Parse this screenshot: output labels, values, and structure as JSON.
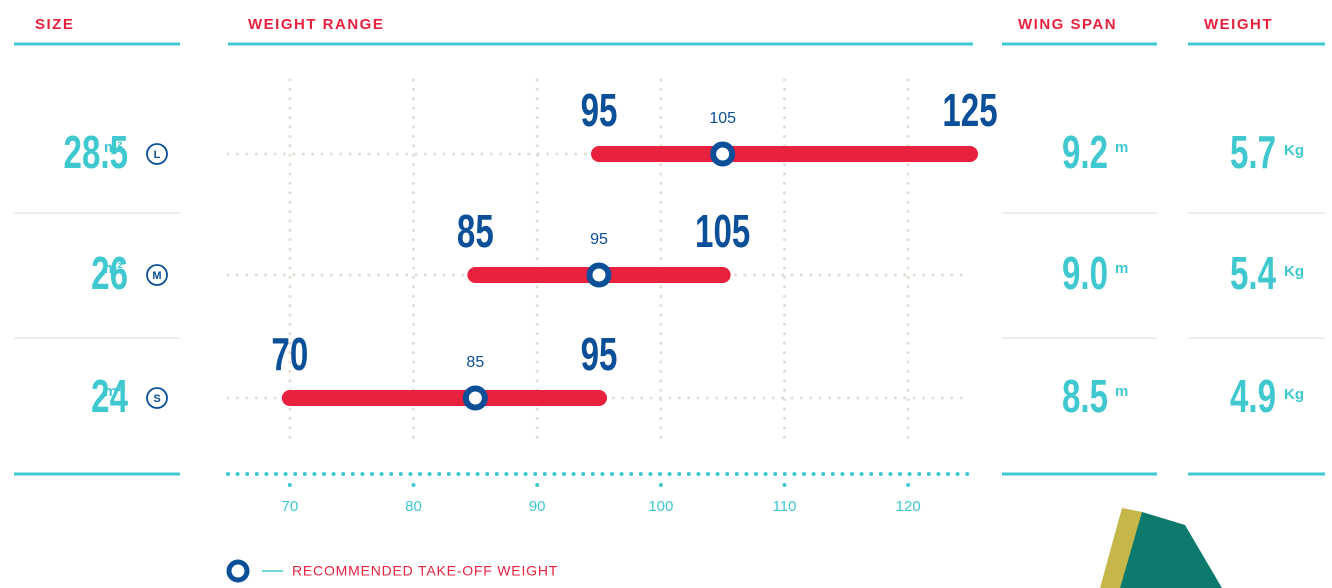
{
  "headers": {
    "size": "SIZE",
    "weight_range": "WEIGHT RANGE",
    "wing_span": "WING SPAN",
    "weight": "WEIGHT"
  },
  "rows": [
    {
      "size": "28.5",
      "size_unit": "m²",
      "wing_span": "9.2",
      "wing_span_unit": "m",
      "weight": "5.7",
      "weight_unit": "Kg"
    },
    {
      "size": "26",
      "size_unit": "m²",
      "wing_span": "9.0",
      "wing_span_unit": "m",
      "weight": "5.4",
      "weight_unit": "Kg"
    },
    {
      "size": "24",
      "size_unit": "m²",
      "wing_span": "8.5",
      "wing_span_unit": "m",
      "weight": "4.9",
      "weight_unit": "Kg"
    }
  ],
  "chart_data": {
    "type": "range",
    "categories": [
      "L",
      "M",
      "S"
    ],
    "low": [
      95,
      85,
      70
    ],
    "high": [
      125,
      105,
      95
    ],
    "recommended": [
      105,
      95,
      85
    ],
    "recommended_label": "RECOMMENDED TAKE-OFF WEIGHT",
    "bar_color": "#e8213f",
    "marker_color": "#0b4f98",
    "xlim": [
      65,
      125
    ],
    "xticks": [
      70,
      80,
      90,
      100,
      110,
      120
    ],
    "grid": true
  }
}
